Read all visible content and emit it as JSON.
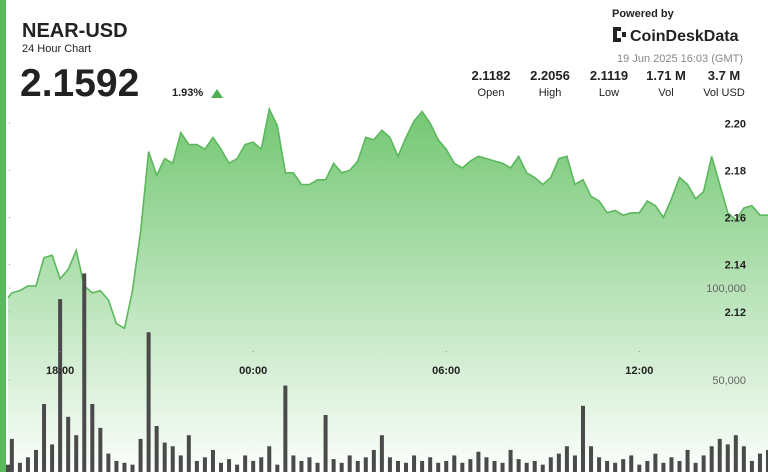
{
  "header": {
    "title": "NEAR-USD",
    "subtitle": "24 Hour Chart",
    "price": "2.1592",
    "change": "1.93%",
    "powered_by": "Powered by",
    "brand": "CoinDeskData",
    "timestamp": "19 Jun 2025 16:03 (GMT)"
  },
  "stats": [
    {
      "value": "2.1182",
      "label": "Open"
    },
    {
      "value": "2.2056",
      "label": "High"
    },
    {
      "value": "2.1119",
      "label": "Low"
    },
    {
      "value": "1.71 M",
      "label": "Vol"
    },
    {
      "value": "3.7 M",
      "label": "Vol USD"
    }
  ],
  "chart_data": {
    "type": "area",
    "x": [
      16.38,
      16.5,
      16.75,
      17,
      17.25,
      17.5,
      17.75,
      18,
      18.25,
      18.5,
      18.75,
      19,
      19.25,
      19.5,
      19.75,
      20,
      20.25,
      20.5,
      20.75,
      21,
      21.25,
      21.5,
      21.75,
      22,
      22.25,
      22.5,
      22.75,
      23,
      23.25,
      23.5,
      23.75,
      24,
      24.25,
      24.5,
      24.75,
      25,
      25.25,
      25.5,
      25.75,
      26,
      26.25,
      26.5,
      26.75,
      27,
      27.25,
      27.5,
      27.75,
      28,
      28.25,
      28.5,
      28.75,
      29,
      29.25,
      29.5,
      29.75,
      30,
      30.25,
      30.5,
      30.75,
      31,
      31.25,
      31.5,
      31.75,
      32,
      32.25,
      32.5,
      32.75,
      33,
      33.25,
      33.5,
      33.75,
      34,
      34.25,
      34.5,
      34.75,
      35,
      35.25,
      35.5,
      35.75,
      36,
      36.25,
      36.5,
      36.75,
      37,
      37.25,
      37.5,
      37.75,
      38,
      38.25,
      38.5,
      38.75,
      39,
      39.25,
      39.5,
      39.75,
      40
    ],
    "xlim": [
      16.38,
      40.0
    ],
    "xticks": [
      {
        "value": 18,
        "label": "18:00"
      },
      {
        "value": 24,
        "label": "00:00"
      },
      {
        "value": 30,
        "label": "06:00"
      },
      {
        "value": 36,
        "label": "12:00"
      }
    ],
    "ylim": [
      2.052,
      2.212
    ],
    "yticks": [
      2.12,
      2.14,
      2.16,
      2.18,
      {
        "value": 2.2,
        "label": "2.20"
      }
    ],
    "y2lim": [
      0,
      205000
    ],
    "y2ticks": [
      {
        "value": 50000,
        "label": "50,000"
      },
      {
        "value": 100000,
        "label": "100,000"
      }
    ],
    "series": [
      {
        "type": "area",
        "color": "#5cb85c",
        "values": [
          2.126,
          2.128,
          2.129,
          2.131,
          2.131,
          2.143,
          2.144,
          2.134,
          2.138,
          2.146,
          2.131,
          2.128,
          2.129,
          2.125,
          2.115,
          2.113,
          2.129,
          2.154,
          2.188,
          2.178,
          2.185,
          2.183,
          2.196,
          2.191,
          2.191,
          2.189,
          2.194,
          2.189,
          2.183,
          2.185,
          2.191,
          2.192,
          2.189,
          2.206,
          2.199,
          2.179,
          2.179,
          2.174,
          2.174,
          2.176,
          2.176,
          2.183,
          2.179,
          2.18,
          2.184,
          2.194,
          2.193,
          2.197,
          2.194,
          2.186,
          2.194,
          2.201,
          2.205,
          2.2,
          2.193,
          2.189,
          2.183,
          2.181,
          2.184,
          2.186,
          2.185,
          2.184,
          2.183,
          2.181,
          2.186,
          2.179,
          2.177,
          2.174,
          2.177,
          2.185,
          2.186,
          2.174,
          2.176,
          2.169,
          2.167,
          2.162,
          2.163,
          2.161,
          2.162,
          2.162,
          2.167,
          2.165,
          2.16,
          2.168,
          2.177,
          2.174,
          2.168,
          2.171,
          2.186,
          2.174,
          2.162,
          2.159,
          2.164,
          2.165,
          2.161,
          2.161
        ]
      },
      {
        "type": "bar",
        "axis": "y2",
        "color": "#4a4a4a",
        "values": [
          4000,
          18000,
          5000,
          8000,
          12000,
          37000,
          15000,
          94000,
          30000,
          20000,
          108000,
          37000,
          24000,
          10000,
          6000,
          5000,
          4000,
          18000,
          76000,
          25000,
          16000,
          14000,
          9000,
          20000,
          6000,
          8000,
          12000,
          5000,
          7000,
          4000,
          9000,
          6000,
          8000,
          14000,
          4000,
          47000,
          9000,
          6000,
          8000,
          5000,
          31000,
          7000,
          5000,
          9000,
          6000,
          8000,
          12000,
          20000,
          8000,
          6000,
          5000,
          9000,
          6000,
          8000,
          5000,
          6000,
          9000,
          5000,
          7000,
          11000,
          8000,
          6000,
          5000,
          12000,
          7000,
          5000,
          6000,
          4000,
          8000,
          10000,
          14000,
          9000,
          36000,
          14000,
          8000,
          6000,
          5000,
          7000,
          9000,
          4000,
          6000,
          10000,
          5000,
          8000,
          6000,
          12000,
          5000,
          9000,
          14000,
          18000,
          15000,
          20000,
          14000,
          6000,
          10000,
          12000
        ]
      }
    ]
  }
}
